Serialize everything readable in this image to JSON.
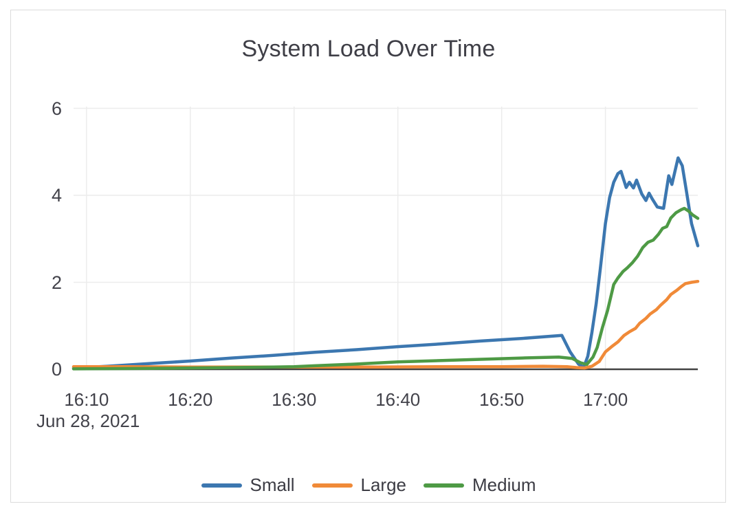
{
  "chart_data": {
    "type": "line",
    "title": "System Load Over Time",
    "x_axis_date": "Jun 28, 2021",
    "x_tick_labels": [
      "16:10",
      "16:20",
      "16:30",
      "16:40",
      "16:50",
      "17:00"
    ],
    "x_tick_minutes_after_1600": [
      10,
      20,
      30,
      40,
      50,
      60
    ],
    "y_tick_labels": [
      "0",
      "2",
      "4",
      "6"
    ],
    "y_ticks": [
      0,
      2,
      4,
      6
    ],
    "xlim_minutes_after_1600": [
      8.75,
      68.9
    ],
    "ylim": [
      0,
      6.04
    ],
    "grid": true,
    "legend_position": "bottom",
    "axis_color": "#424242",
    "grid_color": "#ececec",
    "series": [
      {
        "name": "Small",
        "color": "#3c77b0",
        "points": [
          [
            8.75,
            0.03
          ],
          [
            12,
            0.07
          ],
          [
            16,
            0.13
          ],
          [
            20,
            0.19
          ],
          [
            24,
            0.26
          ],
          [
            28,
            0.32
          ],
          [
            32,
            0.39
          ],
          [
            36,
            0.45
          ],
          [
            40,
            0.52
          ],
          [
            44,
            0.58
          ],
          [
            48,
            0.65
          ],
          [
            52,
            0.71
          ],
          [
            55.8,
            0.78
          ],
          [
            56.6,
            0.4
          ],
          [
            57.4,
            0.12
          ],
          [
            57.9,
            0.04
          ],
          [
            58.3,
            0.3
          ],
          [
            58.7,
            0.85
          ],
          [
            59.1,
            1.5
          ],
          [
            59.5,
            2.3
          ],
          [
            60.0,
            3.35
          ],
          [
            60.4,
            3.95
          ],
          [
            60.8,
            4.3
          ],
          [
            61.2,
            4.5
          ],
          [
            61.5,
            4.55
          ],
          [
            62.0,
            4.18
          ],
          [
            62.3,
            4.3
          ],
          [
            62.7,
            4.17
          ],
          [
            63.0,
            4.35
          ],
          [
            63.5,
            4.03
          ],
          [
            63.9,
            3.88
          ],
          [
            64.2,
            4.05
          ],
          [
            64.5,
            3.92
          ],
          [
            65.0,
            3.73
          ],
          [
            65.6,
            3.7
          ],
          [
            66.1,
            4.45
          ],
          [
            66.4,
            4.25
          ],
          [
            67.0,
            4.86
          ],
          [
            67.4,
            4.68
          ],
          [
            67.8,
            4.1
          ],
          [
            68.3,
            3.35
          ],
          [
            68.9,
            2.84
          ]
        ]
      },
      {
        "name": "Large",
        "color": "#f08a38",
        "points": [
          [
            8.75,
            0.06
          ],
          [
            14,
            0.06
          ],
          [
            20,
            0.05
          ],
          [
            26,
            0.05
          ],
          [
            32,
            0.05
          ],
          [
            38,
            0.05
          ],
          [
            44,
            0.06
          ],
          [
            50,
            0.06
          ],
          [
            54,
            0.07
          ],
          [
            56.3,
            0.06
          ],
          [
            57.2,
            0.04
          ],
          [
            58.0,
            0.03
          ],
          [
            58.7,
            0.07
          ],
          [
            59.4,
            0.18
          ],
          [
            60.0,
            0.4
          ],
          [
            60.6,
            0.52
          ],
          [
            61.2,
            0.63
          ],
          [
            61.8,
            0.78
          ],
          [
            62.3,
            0.86
          ],
          [
            62.9,
            0.94
          ],
          [
            63.3,
            1.06
          ],
          [
            63.9,
            1.17
          ],
          [
            64.3,
            1.27
          ],
          [
            64.9,
            1.37
          ],
          [
            65.3,
            1.47
          ],
          [
            65.9,
            1.6
          ],
          [
            66.3,
            1.72
          ],
          [
            66.9,
            1.82
          ],
          [
            67.3,
            1.9
          ],
          [
            67.7,
            1.97
          ],
          [
            68.3,
            2.0
          ],
          [
            68.9,
            2.02
          ]
        ]
      },
      {
        "name": "Medium",
        "color": "#4e9a45",
        "points": [
          [
            8.75,
            0.01
          ],
          [
            16,
            0.02
          ],
          [
            20,
            0.03
          ],
          [
            24,
            0.04
          ],
          [
            28,
            0.05
          ],
          [
            30,
            0.06
          ],
          [
            32,
            0.08
          ],
          [
            36,
            0.12
          ],
          [
            40,
            0.17
          ],
          [
            44,
            0.2
          ],
          [
            48,
            0.23
          ],
          [
            52,
            0.26
          ],
          [
            55.5,
            0.28
          ],
          [
            56.8,
            0.25
          ],
          [
            57.6,
            0.15
          ],
          [
            58.2,
            0.11
          ],
          [
            58.8,
            0.28
          ],
          [
            59.2,
            0.5
          ],
          [
            59.7,
            0.95
          ],
          [
            60.2,
            1.35
          ],
          [
            60.8,
            1.95
          ],
          [
            61.2,
            2.1
          ],
          [
            61.7,
            2.25
          ],
          [
            62.1,
            2.33
          ],
          [
            62.6,
            2.45
          ],
          [
            63.1,
            2.6
          ],
          [
            63.6,
            2.8
          ],
          [
            64.1,
            2.92
          ],
          [
            64.6,
            2.97
          ],
          [
            65.1,
            3.1
          ],
          [
            65.5,
            3.24
          ],
          [
            65.9,
            3.28
          ],
          [
            66.3,
            3.48
          ],
          [
            66.8,
            3.6
          ],
          [
            67.3,
            3.67
          ],
          [
            67.6,
            3.7
          ],
          [
            68.0,
            3.64
          ],
          [
            68.4,
            3.55
          ],
          [
            68.9,
            3.47
          ]
        ]
      }
    ]
  }
}
